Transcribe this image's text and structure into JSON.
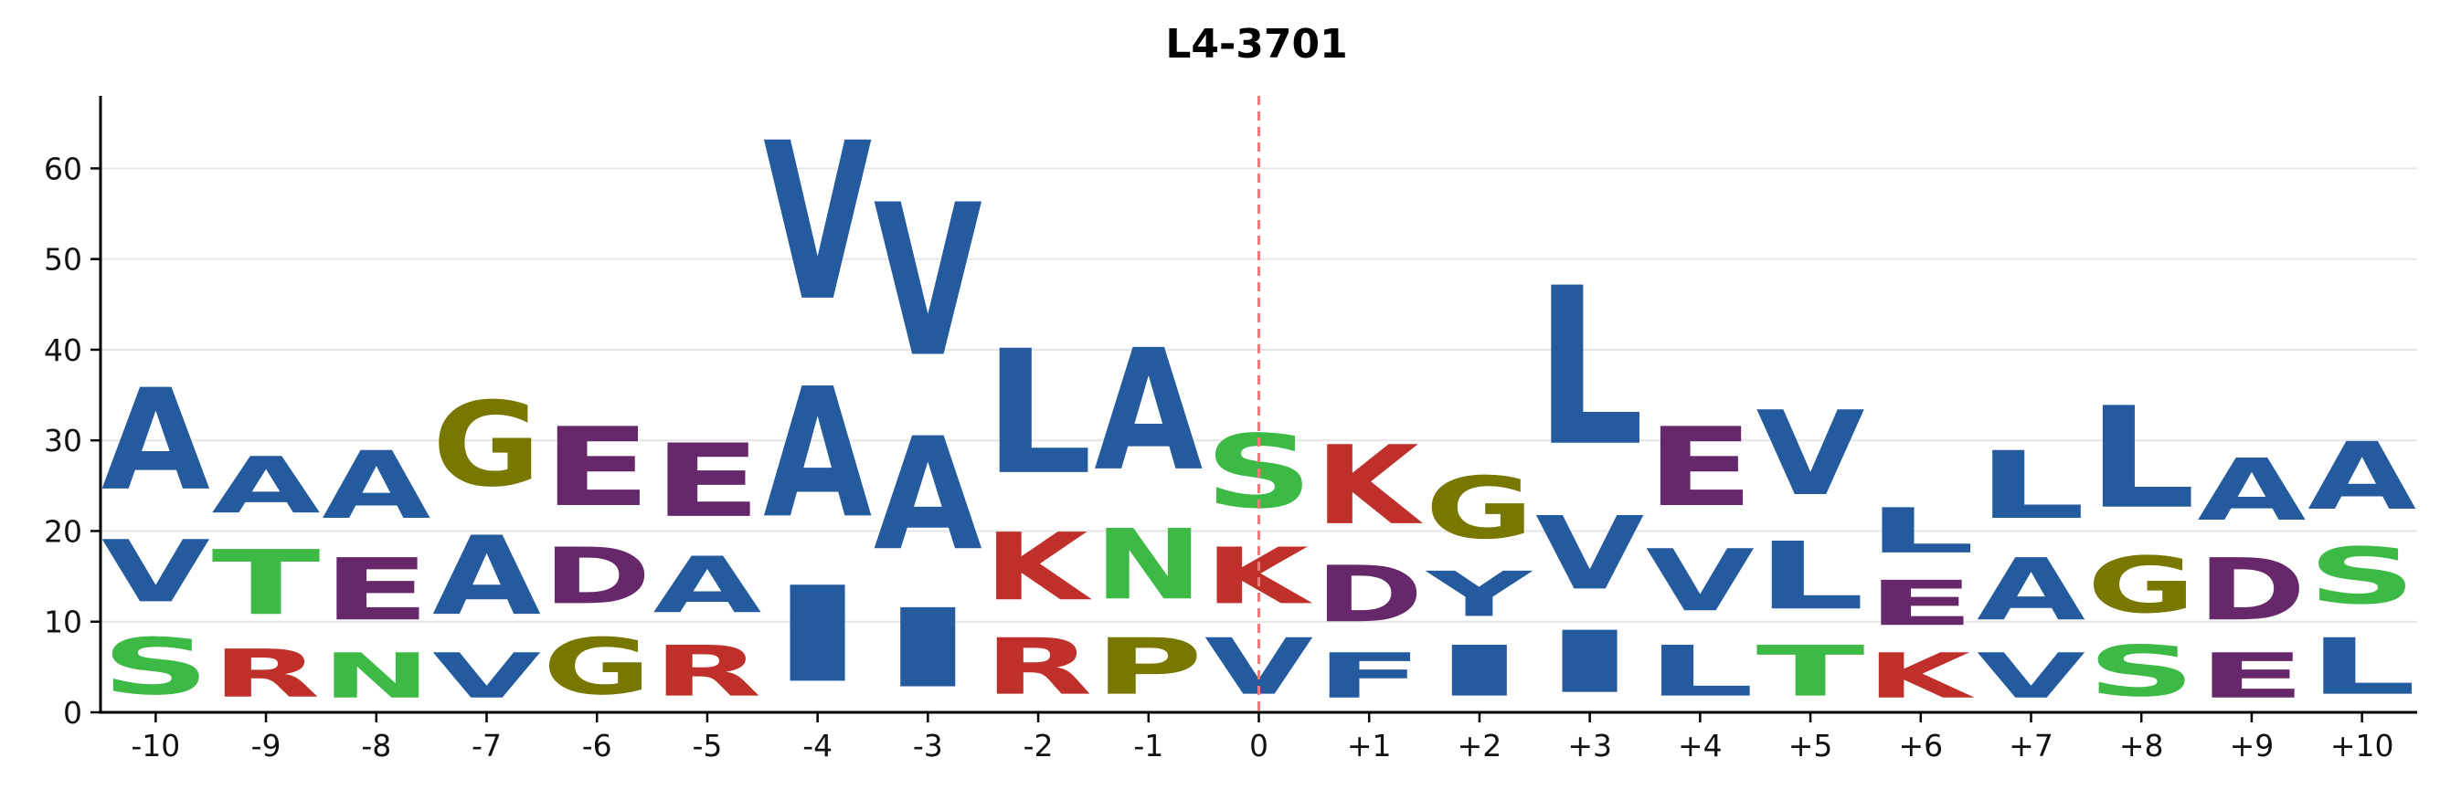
{
  "chart_data": {
    "type": "sequence_logo",
    "title": "L4-3701",
    "ylim": [
      0,
      68
    ],
    "yticks": [
      0,
      10,
      20,
      30,
      40,
      50,
      60
    ],
    "center_line_position": "0",
    "grid": true,
    "colors": {
      "hydrophobic": "#245a9e",
      "basic": "#c0302a",
      "acidic": "#66286a",
      "polar": "#3dba45",
      "special": "#787800"
    },
    "positions": [
      {
        "label": "-10",
        "stack": [
          {
            "letter": "S",
            "value": 10
          },
          {
            "letter": "V",
            "value": 11
          },
          {
            "letter": "A",
            "value": 18
          }
        ]
      },
      {
        "label": "-9",
        "stack": [
          {
            "letter": "R",
            "value": 8.5
          },
          {
            "letter": "T",
            "value": 11.5
          },
          {
            "letter": "A",
            "value": 10
          }
        ]
      },
      {
        "label": "-8",
        "stack": [
          {
            "letter": "N",
            "value": 8
          },
          {
            "letter": "E",
            "value": 11
          },
          {
            "letter": "A",
            "value": 12
          }
        ]
      },
      {
        "label": "-7",
        "stack": [
          {
            "letter": "V",
            "value": 8
          },
          {
            "letter": "A",
            "value": 14
          },
          {
            "letter": "G",
            "value": 15
          }
        ]
      },
      {
        "label": "-6",
        "stack": [
          {
            "letter": "G",
            "value": 10
          },
          {
            "letter": "D",
            "value": 10
          },
          {
            "letter": "E",
            "value": 14
          }
        ]
      },
      {
        "label": "-5",
        "stack": [
          {
            "letter": "R",
            "value": 9
          },
          {
            "letter": "A",
            "value": 10
          },
          {
            "letter": "E",
            "value": 13
          }
        ]
      },
      {
        "label": "-4",
        "stack": [
          {
            "letter": "I",
            "value": 17
          },
          {
            "letter": "A",
            "value": 23
          },
          {
            "letter": "V",
            "value": 28
          }
        ]
      },
      {
        "label": "-3",
        "stack": [
          {
            "letter": "I",
            "value": 14
          },
          {
            "letter": "A",
            "value": 20
          },
          {
            "letter": "V",
            "value": 27
          }
        ]
      },
      {
        "label": "-2",
        "stack": [
          {
            "letter": "R",
            "value": 10
          },
          {
            "letter": "K",
            "value": 12
          },
          {
            "letter": "L",
            "value": 22
          }
        ]
      },
      {
        "label": "-1",
        "stack": [
          {
            "letter": "P",
            "value": 10
          },
          {
            "letter": "N",
            "value": 12.5
          },
          {
            "letter": "A",
            "value": 21.5
          }
        ]
      },
      {
        "label": "0",
        "stack": [
          {
            "letter": "V",
            "value": 10
          },
          {
            "letter": "K",
            "value": 10
          },
          {
            "letter": "S",
            "value": 13
          }
        ]
      },
      {
        "label": "+1",
        "stack": [
          {
            "letter": "F",
            "value": 8
          },
          {
            "letter": "D",
            "value": 10
          },
          {
            "letter": "K",
            "value": 14
          }
        ]
      },
      {
        "label": "+2",
        "stack": [
          {
            "letter": "I",
            "value": 9
          },
          {
            "letter": "Y",
            "value": 8
          },
          {
            "letter": "G",
            "value": 11
          }
        ]
      },
      {
        "label": "+3",
        "stack": [
          {
            "letter": "I",
            "value": 11
          },
          {
            "letter": "V",
            "value": 13
          },
          {
            "letter": "L",
            "value": 28
          }
        ]
      },
      {
        "label": "+4",
        "stack": [
          {
            "letter": "L",
            "value": 9
          },
          {
            "letter": "V",
            "value": 11
          },
          {
            "letter": "E",
            "value": 14
          }
        ]
      },
      {
        "label": "+5",
        "stack": [
          {
            "letter": "T",
            "value": 9
          },
          {
            "letter": "L",
            "value": 12
          },
          {
            "letter": "V",
            "value": 15
          }
        ]
      },
      {
        "label": "+6",
        "stack": [
          {
            "letter": "K",
            "value": 8
          },
          {
            "letter": "E",
            "value": 8
          },
          {
            "letter": "L",
            "value": 8
          }
        ]
      },
      {
        "label": "+7",
        "stack": [
          {
            "letter": "V",
            "value": 8
          },
          {
            "letter": "A",
            "value": 11
          },
          {
            "letter": "L",
            "value": 12
          }
        ]
      },
      {
        "label": "+8",
        "stack": [
          {
            "letter": "S",
            "value": 9
          },
          {
            "letter": "G",
            "value": 10
          },
          {
            "letter": "L",
            "value": 18
          }
        ]
      },
      {
        "label": "+9",
        "stack": [
          {
            "letter": "E",
            "value": 8
          },
          {
            "letter": "D",
            "value": 11
          },
          {
            "letter": "A",
            "value": 11
          }
        ]
      },
      {
        "label": "+10",
        "stack": [
          {
            "letter": "L",
            "value": 10
          },
          {
            "letter": "S",
            "value": 10
          },
          {
            "letter": "A",
            "value": 12
          }
        ]
      }
    ],
    "letter_groups": {
      "hydrophobic": [
        "A",
        "V",
        "I",
        "L",
        "F",
        "W",
        "Y",
        "M",
        "C"
      ],
      "basic": [
        "R",
        "K",
        "H"
      ],
      "acidic": [
        "D",
        "E"
      ],
      "polar": [
        "S",
        "T",
        "N",
        "Q"
      ],
      "special": [
        "G",
        "P"
      ]
    }
  }
}
